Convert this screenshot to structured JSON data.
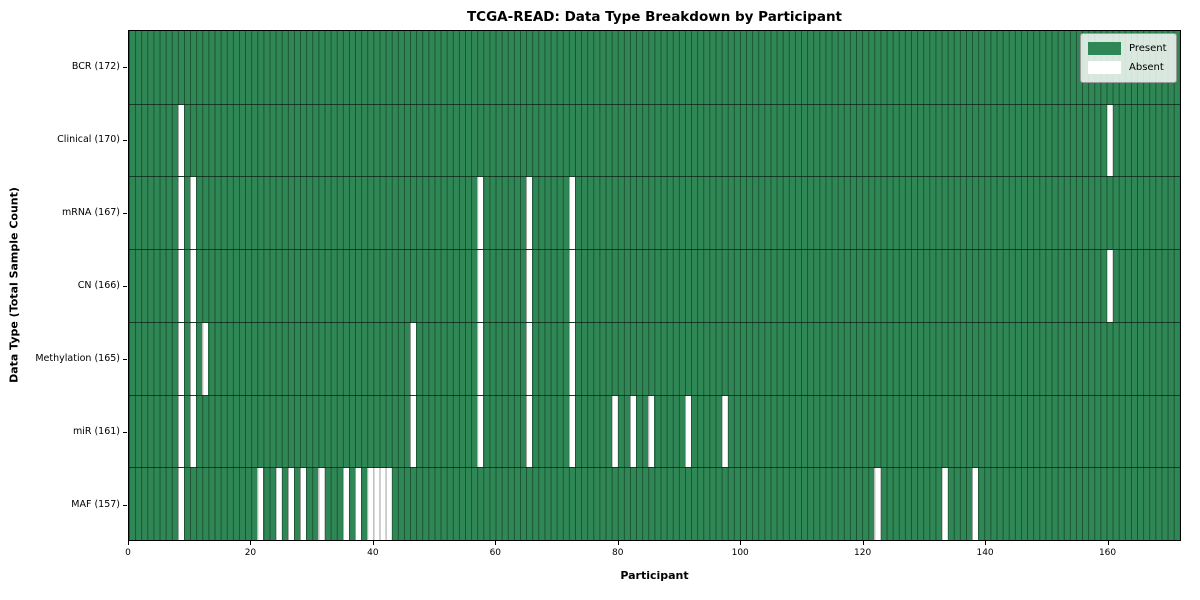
{
  "title": "TCGA-READ: Data Type Breakdown by Participant",
  "xlabel": "Participant",
  "ylabel": "Data Type (Total Sample Count)",
  "legend": {
    "present_label": "Present",
    "absent_label": "Absent"
  },
  "colors": {
    "present": "#2f8756",
    "absent": "#ffffff",
    "grid_line": "rgba(0,0,0,0.40)",
    "frame": "#000000"
  },
  "chart_data": {
    "type": "heatmap",
    "title": "TCGA-READ: Data Type Breakdown by Participant",
    "xlabel": "Participant",
    "ylabel": "Data Type (Total Sample Count)",
    "x_range": [
      0,
      172
    ],
    "n_participants": 172,
    "x_ticks": [
      0,
      20,
      40,
      60,
      80,
      100,
      120,
      140,
      160
    ],
    "legend_entries": [
      "Present",
      "Absent"
    ],
    "legend_position": "upper right",
    "rows": [
      {
        "label": "BCR (172)",
        "data_type": "BCR",
        "total_sample_count": 172,
        "absent_participants": []
      },
      {
        "label": "Clinical (170)",
        "data_type": "Clinical",
        "total_sample_count": 170,
        "absent_participants": [
          8,
          160
        ]
      },
      {
        "label": "mRNA (167)",
        "data_type": "mRNA",
        "total_sample_count": 167,
        "absent_participants": [
          8,
          10,
          57,
          65,
          72
        ]
      },
      {
        "label": "CN (166)",
        "data_type": "CN",
        "total_sample_count": 166,
        "absent_participants": [
          8,
          10,
          57,
          65,
          72,
          160
        ]
      },
      {
        "label": "Methylation (165)",
        "data_type": "Methylation",
        "total_sample_count": 165,
        "absent_participants": [
          8,
          10,
          12,
          46,
          57,
          65,
          72
        ]
      },
      {
        "label": "miR (161)",
        "data_type": "miR",
        "total_sample_count": 161,
        "absent_participants": [
          8,
          10,
          46,
          57,
          65,
          72,
          79,
          82,
          85,
          91,
          97
        ]
      },
      {
        "label": "MAF (157)",
        "data_type": "MAF",
        "total_sample_count": 157,
        "absent_participants": [
          8,
          21,
          24,
          26,
          28,
          31,
          35,
          37,
          39,
          40,
          41,
          42,
          122,
          133,
          138
        ]
      }
    ]
  }
}
